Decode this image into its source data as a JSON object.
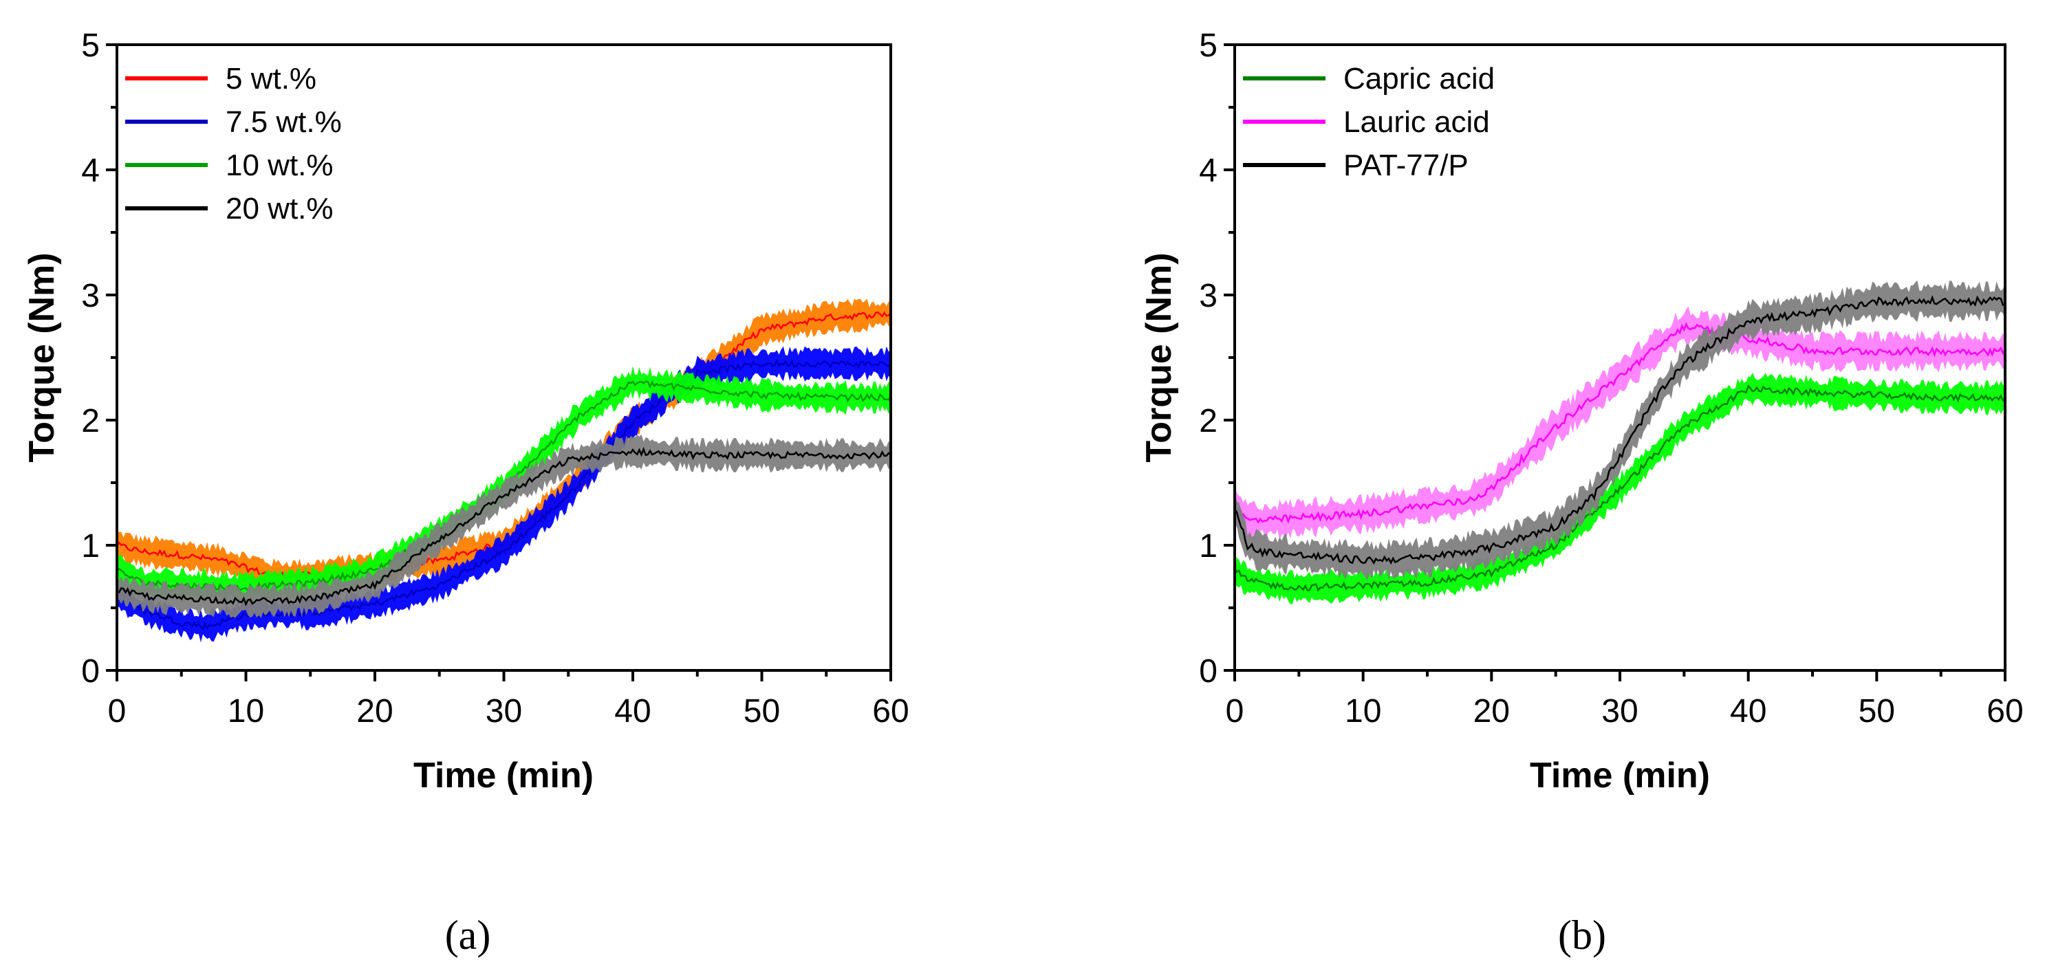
{
  "chart_data": [
    {
      "type": "line",
      "panel_label": "(a)",
      "xlabel": "Time (min)",
      "ylabel": "Torque (Nm)",
      "xlim": [
        0,
        60
      ],
      "ylim": [
        0,
        5
      ],
      "xticks": [
        "0",
        "10",
        "20",
        "30",
        "40",
        "50",
        "60"
      ],
      "yticks": [
        "0",
        "1",
        "2",
        "3",
        "4",
        "5"
      ],
      "legend_position": "top-left",
      "series": [
        {
          "name": "5 wt.%",
          "color": "#ff0000",
          "band_color": "#ff8000",
          "x": [
            0,
            2,
            5,
            8,
            10,
            12,
            15,
            20,
            25,
            30,
            35,
            40,
            45,
            50,
            55,
            60
          ],
          "y": [
            1.0,
            0.95,
            0.92,
            0.88,
            0.82,
            0.76,
            0.76,
            0.82,
            0.88,
            1.02,
            1.45,
            1.98,
            2.35,
            2.72,
            2.82,
            2.85
          ],
          "noise": 0.1
        },
        {
          "name": "7.5 wt.%",
          "color": "#0000c0",
          "band_color": "#0000ff",
          "x": [
            0,
            2,
            5,
            7,
            10,
            15,
            20,
            25,
            30,
            35,
            40,
            45,
            50,
            55,
            60
          ],
          "y": [
            0.6,
            0.48,
            0.38,
            0.35,
            0.45,
            0.46,
            0.53,
            0.68,
            0.95,
            1.4,
            1.98,
            2.38,
            2.45,
            2.45,
            2.45
          ],
          "noise": 0.1
        },
        {
          "name": "10 wt.%",
          "color": "#00a000",
          "band_color": "#00ff00",
          "x": [
            0,
            2,
            5,
            10,
            15,
            20,
            25,
            30,
            33,
            36,
            40,
            45,
            50,
            55,
            60
          ],
          "y": [
            0.8,
            0.7,
            0.68,
            0.66,
            0.7,
            0.8,
            1.1,
            1.45,
            1.75,
            2.05,
            2.3,
            2.25,
            2.2,
            2.18,
            2.18
          ],
          "noise": 0.1
        },
        {
          "name": "20 wt.%",
          "color": "#000000",
          "band_color": "#7f7f7f",
          "x": [
            0,
            1,
            3,
            5,
            10,
            15,
            20,
            25,
            30,
            35,
            40,
            45,
            50,
            55,
            60
          ],
          "y": [
            0.65,
            0.62,
            0.58,
            0.58,
            0.55,
            0.57,
            0.68,
            1.05,
            1.4,
            1.68,
            1.75,
            1.72,
            1.72,
            1.72,
            1.72
          ],
          "noise": 0.1
        }
      ]
    },
    {
      "type": "line",
      "panel_label": "(b)",
      "xlabel": "Time (min)",
      "ylabel": "Torque (Nm)",
      "xlim": [
        0,
        60
      ],
      "ylim": [
        0,
        5
      ],
      "xticks": [
        "0",
        "10",
        "20",
        "30",
        "40",
        "50",
        "60"
      ],
      "yticks": [
        "0",
        "1",
        "2",
        "3",
        "4",
        "5"
      ],
      "legend_position": "top-left",
      "series": [
        {
          "name": "Capric acid",
          "color": "#008000",
          "band_color": "#00ff00",
          "x": [
            0,
            1,
            3,
            5,
            10,
            15,
            20,
            25,
            30,
            35,
            40,
            45,
            50,
            55,
            60
          ],
          "y": [
            0.8,
            0.72,
            0.68,
            0.66,
            0.68,
            0.7,
            0.78,
            1.0,
            1.45,
            1.95,
            2.25,
            2.22,
            2.2,
            2.18,
            2.18
          ],
          "noise": 0.1
        },
        {
          "name": "Lauric acid",
          "color": "#ff00ff",
          "band_color": "#ff80ff",
          "x": [
            0,
            1,
            3,
            5,
            10,
            15,
            18,
            20,
            25,
            30,
            35,
            38,
            45,
            50,
            55,
            60
          ],
          "y": [
            1.3,
            1.2,
            1.2,
            1.22,
            1.25,
            1.32,
            1.35,
            1.45,
            1.95,
            2.35,
            2.75,
            2.7,
            2.55,
            2.55,
            2.55,
            2.55
          ],
          "noise": 0.12
        },
        {
          "name": "PAT-77/P",
          "color": "#000000",
          "band_color": "#7f7f7f",
          "x": [
            0,
            1,
            2,
            5,
            10,
            15,
            20,
            25,
            28,
            30,
            32,
            33,
            35,
            40,
            45,
            50,
            55,
            60
          ],
          "y": [
            1.3,
            1.0,
            0.95,
            0.92,
            0.88,
            0.9,
            0.98,
            1.15,
            1.4,
            1.7,
            2.05,
            2.2,
            2.45,
            2.8,
            2.85,
            2.95,
            2.95,
            2.95
          ],
          "noise": 0.12
        }
      ]
    }
  ]
}
